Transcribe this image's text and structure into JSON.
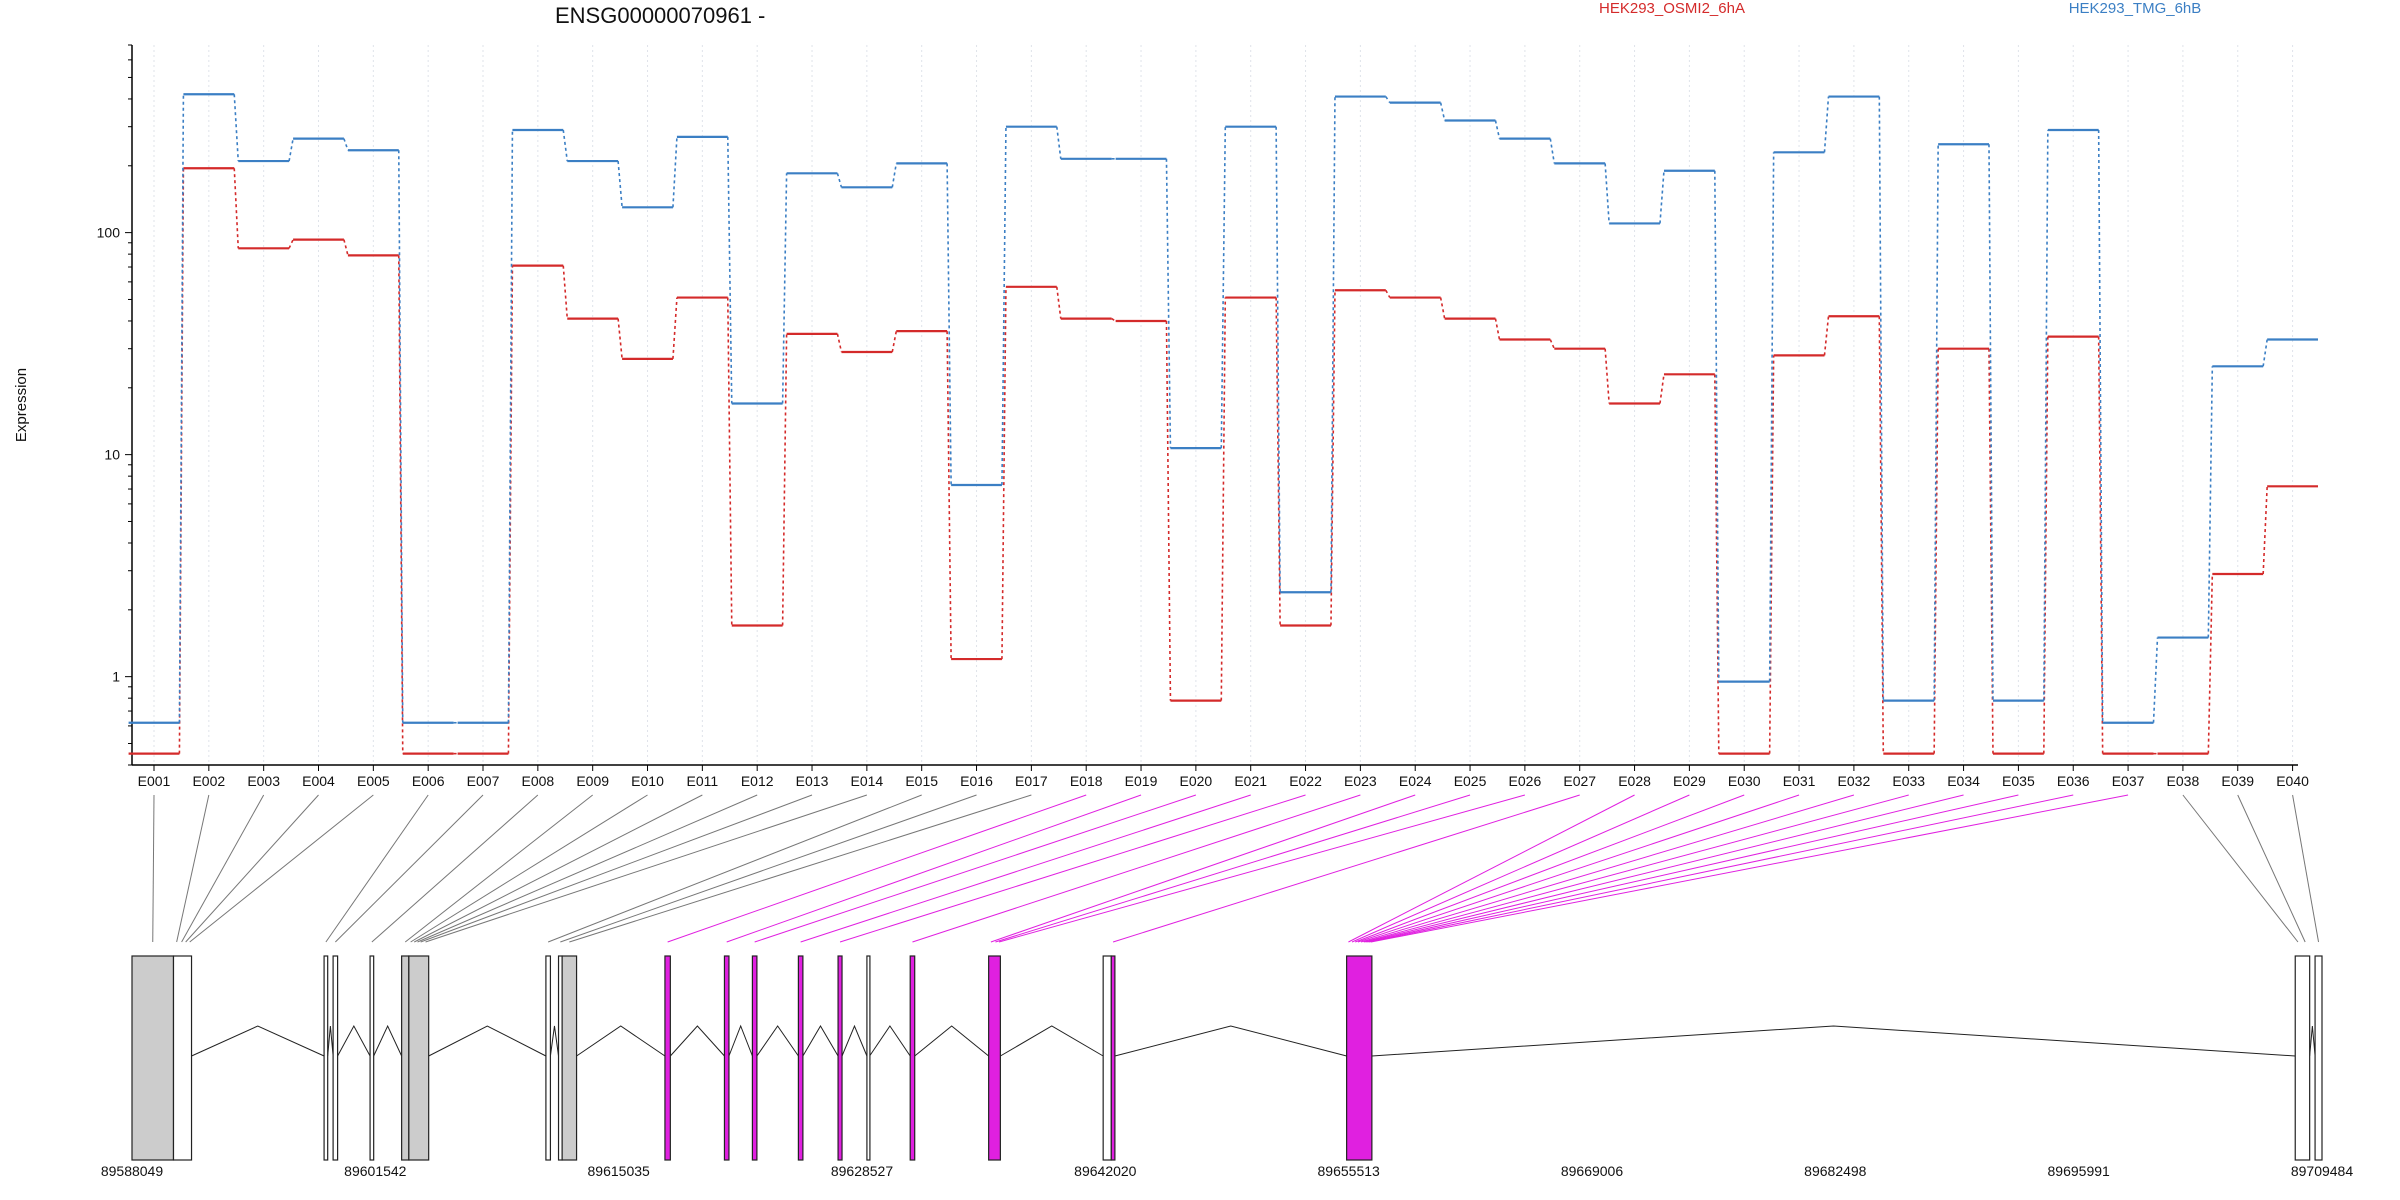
{
  "chart_data": {
    "type": "line",
    "title": "ENSG00000070961 -",
    "ylabel": "Expression",
    "xlabel": "",
    "yscale": "log",
    "ylim": [
      0.4,
      700
    ],
    "yticks": [
      1,
      10,
      100
    ],
    "ytick_labels": [
      "1",
      "10",
      "100"
    ],
    "legend_placement": "top-right",
    "grid": false,
    "categories": [
      "E001",
      "E002",
      "E003",
      "E004",
      "E005",
      "E006",
      "E007",
      "E008",
      "E009",
      "E010",
      "E011",
      "E012",
      "E013",
      "E014",
      "E015",
      "E016",
      "E017",
      "E018",
      "E019",
      "E020",
      "E021",
      "E022",
      "E023",
      "E024",
      "E025",
      "E026",
      "E027",
      "E028",
      "E029",
      "E030",
      "E031",
      "E032",
      "E033",
      "E034",
      "E035",
      "E036",
      "E037",
      "E038",
      "E039",
      "E040"
    ],
    "series": [
      {
        "name": "HEK293_OSMI2_6hA",
        "color": "#d42a2a",
        "values": [
          0.45,
          195,
          85,
          93,
          79,
          0.45,
          0.45,
          71,
          41,
          27,
          51,
          1.7,
          35,
          29,
          36,
          1.2,
          57,
          41,
          40,
          0.78,
          51,
          1.7,
          55,
          51,
          41,
          33,
          30,
          17,
          23,
          0.45,
          28,
          42,
          0.45,
          30,
          0.45,
          34,
          0.45,
          0.45,
          2.9,
          7.2
        ]
      },
      {
        "name": "HEK293_TMG_6hB",
        "color": "#3b7fc4",
        "values": [
          0.62,
          420,
          210,
          265,
          235,
          0.62,
          0.62,
          290,
          210,
          130,
          270,
          17,
          185,
          160,
          205,
          7.3,
          300,
          215,
          215,
          10.7,
          300,
          2.4,
          410,
          385,
          320,
          265,
          205,
          110,
          190,
          0.95,
          230,
          410,
          0.78,
          250,
          0.78,
          290,
          0.62,
          1.5,
          25,
          33
        ]
      }
    ],
    "gene_model": {
      "coordinate_ticks": [
        "89588049",
        "89601542",
        "89615035",
        "89628527",
        "89642020",
        "89655513",
        "89669006",
        "89682498",
        "89695991",
        "89709484"
      ],
      "coord_start": 89588049,
      "coord_end": 89709484,
      "highlight_color": "#e020e0",
      "exon_fill_color": "#cccccc",
      "bins": [
        {
          "exon": "E001",
          "start": 89588049,
          "end": 89590350,
          "highlight": false
        },
        {
          "exon": "E002",
          "start": 89590350,
          "end": 89590700,
          "highlight": false
        },
        {
          "exon": "E003",
          "start": 89590700,
          "end": 89590900,
          "highlight": false
        },
        {
          "exon": "E004",
          "start": 89590900,
          "end": 89591150,
          "highlight": false
        },
        {
          "exon": "E005",
          "start": 89591150,
          "end": 89591350,
          "highlight": false
        },
        {
          "exon": "E006",
          "start": 89598700,
          "end": 89598900,
          "highlight": false
        },
        {
          "exon": "E007",
          "start": 89599200,
          "end": 89599450,
          "highlight": false
        },
        {
          "exon": "E008",
          "start": 89601250,
          "end": 89601450,
          "highlight": false
        },
        {
          "exon": "E009",
          "start": 89603000,
          "end": 89603400,
          "highlight": false
        },
        {
          "exon": "E010",
          "start": 89603400,
          "end": 89603600,
          "highlight": false
        },
        {
          "exon": "E011",
          "start": 89603600,
          "end": 89603800,
          "highlight": false
        },
        {
          "exon": "E012",
          "start": 89603800,
          "end": 89603960,
          "highlight": false
        },
        {
          "exon": "E013",
          "start": 89603960,
          "end": 89604150,
          "highlight": false
        },
        {
          "exon": "E014",
          "start": 89604150,
          "end": 89604500,
          "highlight": false
        },
        {
          "exon": "E015",
          "start": 89611000,
          "end": 89611250,
          "highlight": false
        },
        {
          "exon": "E016",
          "start": 89611700,
          "end": 89611900,
          "highlight": false
        },
        {
          "exon": "E017",
          "start": 89611900,
          "end": 89612700,
          "highlight": false
        },
        {
          "exon": "E018",
          "start": 89617600,
          "end": 89617900,
          "highlight": true
        },
        {
          "exon": "E019",
          "start": 89620900,
          "end": 89621150,
          "highlight": true
        },
        {
          "exon": "E020",
          "start": 89622450,
          "end": 89622700,
          "highlight": true
        },
        {
          "exon": "E021",
          "start": 89625000,
          "end": 89625250,
          "highlight": true
        },
        {
          "exon": "E022",
          "start": 89627200,
          "end": 89627420,
          "highlight": true
        },
        {
          "exon": "E023",
          "start": 89631200,
          "end": 89631450,
          "highlight": true
        },
        {
          "exon": "E024",
          "start": 89635550,
          "end": 89635800,
          "highlight": true
        },
        {
          "exon": "E025",
          "start": 89635800,
          "end": 89636050,
          "highlight": true
        },
        {
          "exon": "E026",
          "start": 89636050,
          "end": 89636200,
          "highlight": true
        },
        {
          "exon": "E027",
          "start": 89642350,
          "end": 89642550,
          "highlight": true
        },
        {
          "exon": "E028",
          "start": 89655400,
          "end": 89655600,
          "highlight": true
        },
        {
          "exon": "E029",
          "start": 89655600,
          "end": 89655800,
          "highlight": true
        },
        {
          "exon": "E030",
          "start": 89655800,
          "end": 89655950,
          "highlight": true
        },
        {
          "exon": "E031",
          "start": 89655950,
          "end": 89656100,
          "highlight": true
        },
        {
          "exon": "E032",
          "start": 89656100,
          "end": 89656300,
          "highlight": true
        },
        {
          "exon": "E033",
          "start": 89656300,
          "end": 89656400,
          "highlight": true
        },
        {
          "exon": "E034",
          "start": 89656400,
          "end": 89656500,
          "highlight": true
        },
        {
          "exon": "E035",
          "start": 89656500,
          "end": 89656600,
          "highlight": true
        },
        {
          "exon": "E036",
          "start": 89656600,
          "end": 89656700,
          "highlight": true
        },
        {
          "exon": "E037",
          "start": 89656700,
          "end": 89656800,
          "highlight": true
        },
        {
          "exon": "E038",
          "start": 89708000,
          "end": 89708300,
          "highlight": false
        },
        {
          "exon": "E039",
          "start": 89708300,
          "end": 89708800,
          "highlight": false
        },
        {
          "exon": "E040",
          "start": 89709100,
          "end": 89709484,
          "highlight": false
        }
      ],
      "blocks": [
        {
          "start": 89588049,
          "end": 89590350,
          "fill": "#cccccc"
        },
        {
          "start": 89590350,
          "end": 89591350,
          "fill": "#ffffff"
        },
        {
          "start": 89598700,
          "end": 89598900,
          "fill": "#ffffff"
        },
        {
          "start": 89599200,
          "end": 89599450,
          "fill": "#ffffff"
        },
        {
          "start": 89601250,
          "end": 89601450,
          "fill": "#ffffff"
        },
        {
          "start": 89603000,
          "end": 89603400,
          "fill": "#cccccc"
        },
        {
          "start": 89603400,
          "end": 89604500,
          "fill": "#cccccc"
        },
        {
          "start": 89611000,
          "end": 89611250,
          "fill": "#ffffff"
        },
        {
          "start": 89611700,
          "end": 89611900,
          "fill": "#ffffff"
        },
        {
          "start": 89611900,
          "end": 89612700,
          "fill": "#cccccc"
        },
        {
          "start": 89617600,
          "end": 89617900,
          "fill": "#e020e0"
        },
        {
          "start": 89620900,
          "end": 89621150,
          "fill": "#e020e0"
        },
        {
          "start": 89622450,
          "end": 89622700,
          "fill": "#e020e0"
        },
        {
          "start": 89625000,
          "end": 89625250,
          "fill": "#e020e0"
        },
        {
          "start": 89627200,
          "end": 89627420,
          "fill": "#e020e0"
        },
        {
          "start": 89628800,
          "end": 89628950,
          "fill": "#ffffff"
        },
        {
          "start": 89631200,
          "end": 89631450,
          "fill": "#e020e0"
        },
        {
          "start": 89635550,
          "end": 89636200,
          "fill": "#e020e0"
        },
        {
          "start": 89641900,
          "end": 89642350,
          "fill": "#ffffff"
        },
        {
          "start": 89642350,
          "end": 89642550,
          "fill": "#e020e0"
        },
        {
          "start": 89655400,
          "end": 89656800,
          "fill": "#e020e0"
        },
        {
          "start": 89708000,
          "end": 89708800,
          "fill": "#ffffff"
        },
        {
          "start": 89709100,
          "end": 89709484,
          "fill": "#ffffff"
        }
      ]
    }
  }
}
